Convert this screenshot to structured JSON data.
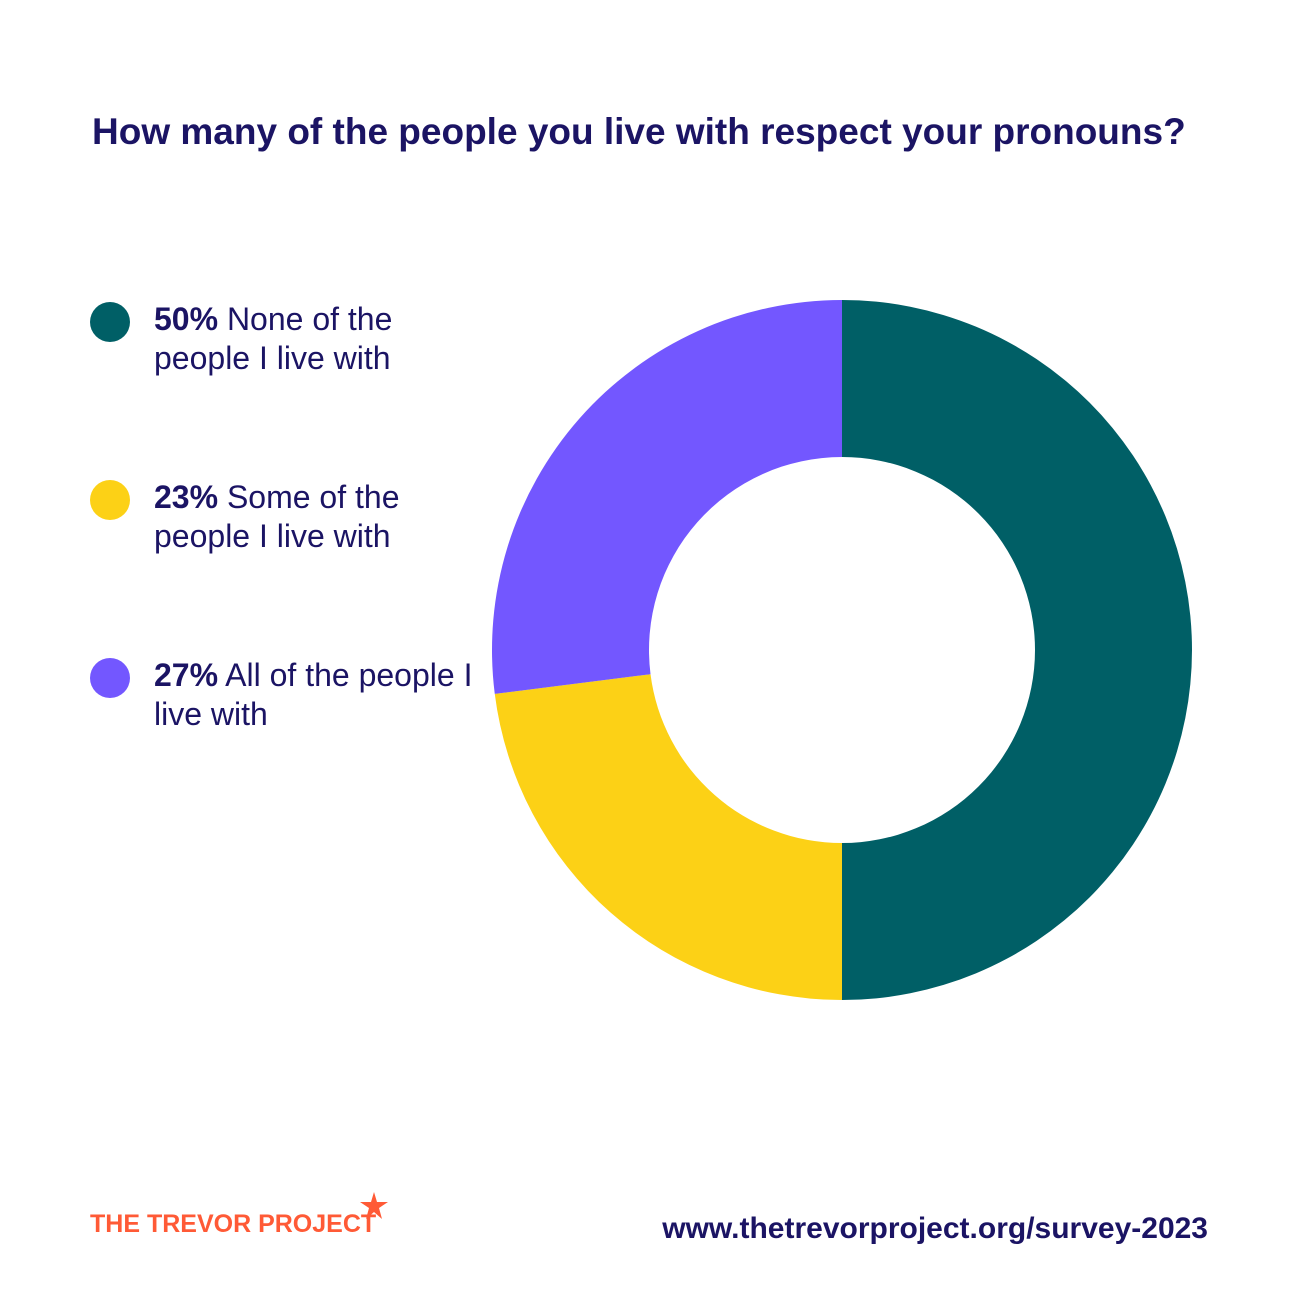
{
  "title": "How many of the people you live with respect your pronouns?",
  "chart_data": {
    "type": "pie",
    "subtype": "donut",
    "categories": [
      "None of the people I live with",
      "Some of the people I live with",
      "All of the people I live with"
    ],
    "values": [
      50,
      23,
      27
    ],
    "unit": "%",
    "colors": [
      "#005f66",
      "#fcd116",
      "#7357ff"
    ],
    "legend_placement": "left"
  },
  "legend": [
    {
      "pct": "50%",
      "text": " None of the people I live with",
      "color": "#005f66"
    },
    {
      "pct": "23%",
      "text": " Some of the people I live with",
      "color": "#fcd116"
    },
    {
      "pct": "27%",
      "text": " All of the people I live with",
      "color": "#7357ff"
    }
  ],
  "footer": {
    "logo": "THE TREVOR PROJECT",
    "url": "www.thetrevorproject.org/survey-2023"
  }
}
